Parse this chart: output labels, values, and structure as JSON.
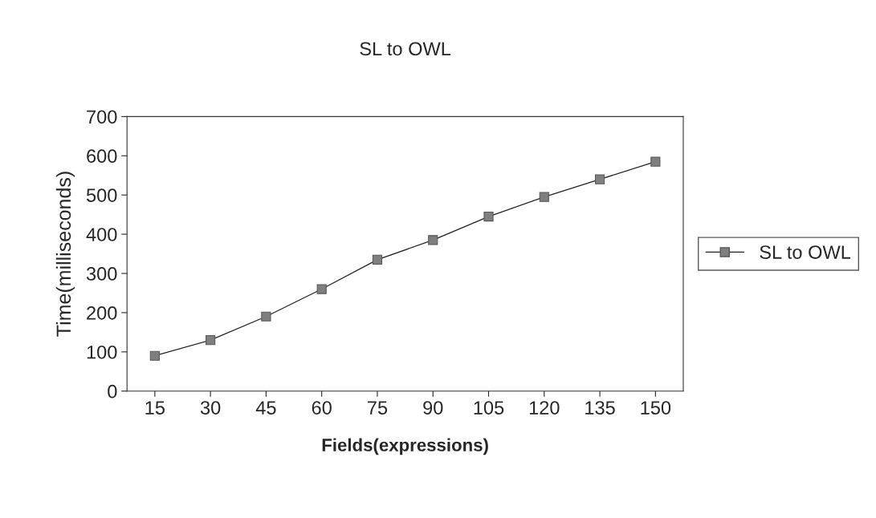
{
  "chart_data": {
    "type": "line",
    "title": "SL to OWL",
    "xlabel": "Fields(expressions)",
    "ylabel": "Time(milliseconds)",
    "categories": [
      "15",
      "30",
      "45",
      "60",
      "75",
      "90",
      "105",
      "120",
      "135",
      "150"
    ],
    "series": [
      {
        "name": "SL to OWL",
        "color": "#7f7f7f",
        "values": [
          90,
          130,
          190,
          260,
          335,
          385,
          445,
          495,
          540,
          585
        ]
      }
    ],
    "ylim": [
      0,
      700
    ],
    "yticks": [
      0,
      100,
      200,
      300,
      400,
      500,
      600,
      700
    ],
    "grid": false,
    "legend": "right",
    "marker": "square",
    "line_style": "solid"
  }
}
